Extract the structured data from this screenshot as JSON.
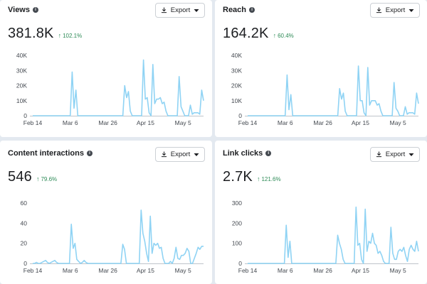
{
  "export_label": "Export",
  "colors": {
    "line": "#8fd3f4",
    "positive": "#2e8b57",
    "axis": "#444950"
  },
  "cards": [
    {
      "title": "Views",
      "value": "381.8K",
      "change": "102.1%",
      "chart_data": {
        "type": "line",
        "title": "Views",
        "x_labels": [
          "Feb 14",
          "Mar 6",
          "Mar 26",
          "Apr 15",
          "May 5"
        ],
        "y_ticks": [
          "0",
          "10K",
          "20K",
          "30K",
          "40K"
        ],
        "ylim": [
          0,
          40000
        ],
        "values": [
          0,
          0,
          0,
          0,
          0,
          0,
          0,
          0,
          0,
          0,
          0,
          0,
          0,
          0,
          0,
          0,
          0,
          0,
          0,
          0,
          0,
          29000,
          5000,
          17000,
          0,
          0,
          0,
          0,
          0,
          0,
          0,
          0,
          0,
          0,
          0,
          0,
          0,
          0,
          0,
          0,
          0,
          0,
          0,
          0,
          0,
          0,
          0,
          0,
          0,
          20000,
          12000,
          16000,
          3000,
          0,
          0,
          0,
          0,
          0,
          0,
          37000,
          11000,
          12000,
          2000,
          0,
          34000,
          8000,
          11000,
          11000,
          12000,
          8000,
          9000,
          3000,
          0,
          0,
          0,
          0,
          0,
          0,
          26000,
          6000,
          3000,
          0,
          0,
          0,
          7000,
          1000,
          2000,
          2000,
          2000,
          1000,
          17000,
          10000
        ]
      }
    },
    {
      "title": "Reach",
      "value": "164.2K",
      "change": "60.4%",
      "chart_data": {
        "type": "line",
        "title": "Reach",
        "x_labels": [
          "Feb 14",
          "Mar 6",
          "Mar 26",
          "Apr 15",
          "May 5"
        ],
        "y_ticks": [
          "0",
          "10K",
          "20K",
          "30K",
          "40K"
        ],
        "ylim": [
          0,
          40000
        ],
        "values": [
          0,
          0,
          0,
          0,
          0,
          0,
          0,
          0,
          0,
          0,
          0,
          0,
          0,
          0,
          0,
          0,
          0,
          0,
          0,
          0,
          0,
          27000,
          4000,
          14000,
          0,
          0,
          0,
          0,
          0,
          0,
          0,
          0,
          0,
          0,
          0,
          0,
          0,
          0,
          0,
          0,
          0,
          0,
          0,
          0,
          0,
          0,
          0,
          0,
          0,
          18000,
          11000,
          15000,
          3000,
          0,
          0,
          0,
          0,
          0,
          0,
          33000,
          10000,
          10000,
          2000,
          0,
          32000,
          7000,
          10000,
          10000,
          10000,
          7000,
          8000,
          3000,
          0,
          0,
          0,
          0,
          0,
          0,
          22000,
          5000,
          3000,
          0,
          0,
          0,
          6000,
          1000,
          2000,
          2000,
          2000,
          1000,
          15000,
          8000
        ]
      }
    },
    {
      "title": "Content interactions",
      "value": "546",
      "change": "79.6%",
      "chart_data": {
        "type": "line",
        "title": "Content interactions",
        "x_labels": [
          "Feb 14",
          "Mar 6",
          "Mar 26",
          "Apr 15",
          "May 5"
        ],
        "y_ticks": [
          "0",
          "20",
          "40",
          "60"
        ],
        "ylim": [
          0,
          60
        ],
        "values": [
          0,
          0,
          1,
          0,
          0,
          1,
          2,
          3,
          1,
          0,
          1,
          2,
          3,
          1,
          0,
          0,
          0,
          0,
          0,
          0,
          0,
          39,
          15,
          20,
          4,
          2,
          0,
          1,
          3,
          1,
          0,
          0,
          0,
          0,
          0,
          0,
          0,
          0,
          0,
          0,
          0,
          0,
          0,
          0,
          0,
          0,
          0,
          0,
          0,
          19,
          14,
          0,
          0,
          0,
          0,
          0,
          0,
          0,
          0,
          53,
          30,
          22,
          10,
          2,
          47,
          10,
          20,
          18,
          20,
          15,
          16,
          5,
          0,
          0,
          0,
          2,
          0,
          5,
          16,
          5,
          4,
          8,
          8,
          10,
          15,
          12,
          0,
          0,
          5,
          10,
          16,
          14,
          17,
          17
        ]
      }
    },
    {
      "title": "Link clicks",
      "value": "2.7K",
      "change": "121.6%",
      "chart_data": {
        "type": "line",
        "title": "Link clicks",
        "x_labels": [
          "Feb 14",
          "Mar 6",
          "Mar 26",
          "Apr 15",
          "May 5"
        ],
        "y_ticks": [
          "0",
          "100",
          "200",
          "300"
        ],
        "ylim": [
          0,
          300
        ],
        "values": [
          0,
          0,
          0,
          0,
          0,
          0,
          0,
          0,
          0,
          0,
          0,
          0,
          0,
          0,
          0,
          0,
          0,
          0,
          0,
          0,
          0,
          190,
          30,
          110,
          0,
          0,
          0,
          0,
          0,
          0,
          0,
          0,
          0,
          0,
          0,
          0,
          0,
          0,
          0,
          0,
          0,
          0,
          0,
          0,
          0,
          0,
          0,
          0,
          0,
          140,
          100,
          70,
          20,
          0,
          0,
          0,
          0,
          0,
          0,
          280,
          90,
          100,
          20,
          0,
          270,
          60,
          110,
          100,
          150,
          100,
          90,
          50,
          60,
          40,
          10,
          0,
          0,
          0,
          180,
          50,
          20,
          20,
          60,
          70,
          60,
          80,
          40,
          10,
          70,
          90,
          70,
          60,
          110,
          60
        ]
      }
    }
  ]
}
